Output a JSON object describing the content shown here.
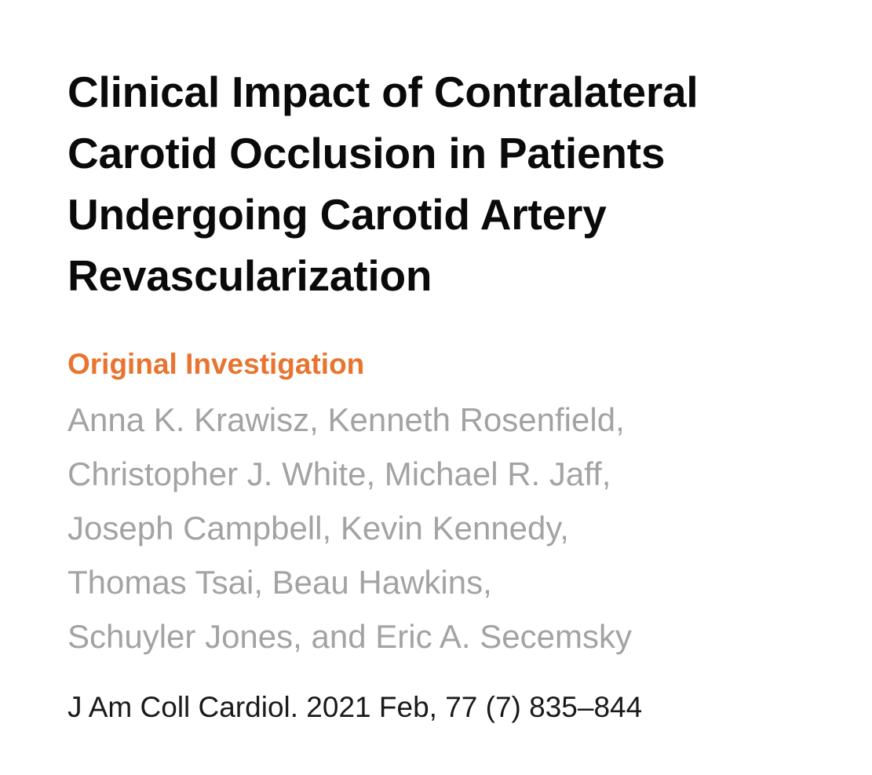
{
  "article": {
    "title_lines": [
      "Clinical Impact of Contralateral",
      "Carotid Occlusion in Patients",
      "Undergoing Carotid Artery",
      "Revascularization"
    ],
    "article_type": "Original Investigation",
    "author_lines": [
      "Anna K. Krawisz, Kenneth Rosenfield,",
      "Christopher J. White, Michael R. Jaff,",
      "Joseph Campbell, Kevin Kennedy,",
      "Thomas Tsai, Beau Hawkins,",
      "Schuyler Jones, and Eric A. Secemsky"
    ],
    "citation": "J Am Coll Cardiol. 2021 Feb, 77 (7) 835–844"
  },
  "colors": {
    "title": "#0a0a0a",
    "article_type": "#e8742f",
    "authors": "#a3a3a3",
    "citation": "#1a1a1a",
    "background": "#ffffff"
  }
}
